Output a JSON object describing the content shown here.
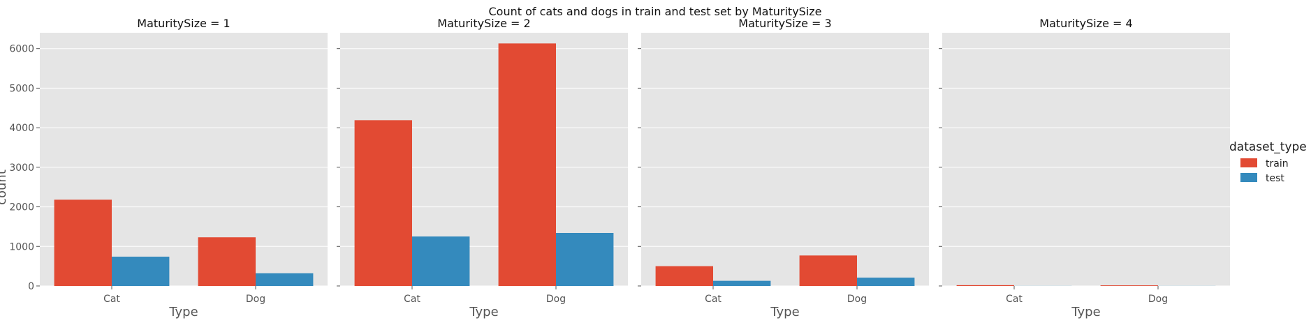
{
  "chart_data": {
    "type": "bar",
    "title": "Count of cats and dogs in train and test set by MaturitySize",
    "xlabel": "Type",
    "ylabel": "count",
    "categories": [
      "Cat",
      "Dog"
    ],
    "ylim": [
      0,
      6400
    ],
    "yticks": [
      0,
      1000,
      2000,
      3000,
      4000,
      5000,
      6000
    ],
    "grid": true,
    "legend": {
      "title": "dataset_type",
      "placement": "right",
      "entries": [
        "train",
        "test"
      ]
    },
    "colors": {
      "train": "#E24A33",
      "test": "#348ABD",
      "panel_bg": "#E5E5E5",
      "grid": "#FFFFFF"
    },
    "facets": [
      {
        "title": "MaturitySize = 1",
        "series": [
          {
            "name": "train",
            "values": [
              2180,
              1230
            ]
          },
          {
            "name": "test",
            "values": [
              740,
              320
            ]
          }
        ]
      },
      {
        "title": "MaturitySize = 2",
        "series": [
          {
            "name": "train",
            "values": [
              4190,
              6130
            ]
          },
          {
            "name": "test",
            "values": [
              1250,
              1340
            ]
          }
        ]
      },
      {
        "title": "MaturitySize = 3",
        "series": [
          {
            "name": "train",
            "values": [
              500,
              770
            ]
          },
          {
            "name": "test",
            "values": [
              130,
              210
            ]
          }
        ]
      },
      {
        "title": "MaturitySize = 4",
        "series": [
          {
            "name": "train",
            "values": [
              20,
              15
            ]
          },
          {
            "name": "test",
            "values": [
              2,
              2
            ]
          }
        ]
      }
    ]
  }
}
